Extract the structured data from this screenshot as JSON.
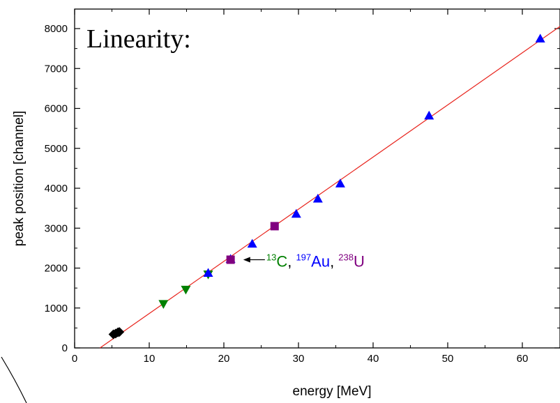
{
  "chart_data": {
    "type": "scatter",
    "title": "Linearity:",
    "xlabel": "energy [MeV]",
    "ylabel": "peak position [channel]",
    "xlim": [
      0,
      65
    ],
    "ylim": [
      0,
      8400
    ],
    "xticks": [
      0,
      10,
      20,
      30,
      40,
      50,
      60
    ],
    "yticks": [
      0,
      1000,
      2000,
      3000,
      4000,
      5000,
      6000,
      7000,
      8000
    ],
    "grid": false,
    "fit_line": {
      "color": "#e8231c",
      "points": [
        [
          3.4,
          0
        ],
        [
          65.4,
          8100
        ]
      ]
    },
    "series": [
      {
        "marker": "diamond",
        "color": "#000000",
        "points": [
          [
            5.2,
            340
          ],
          [
            5.5,
            360
          ],
          [
            5.8,
            390
          ],
          [
            6.0,
            400
          ]
        ]
      },
      {
        "marker": "triangle-down",
        "color": "#008000",
        "points": [
          [
            11.9,
            1100
          ],
          [
            14.9,
            1460
          ],
          [
            17.9,
            1840
          ]
        ]
      },
      {
        "marker": "triangle-up",
        "color": "#0000ff",
        "points": [
          [
            17.9,
            1880
          ],
          [
            20.9,
            2230
          ],
          [
            23.8,
            2610
          ],
          [
            29.7,
            3360
          ],
          [
            32.6,
            3740
          ],
          [
            35.6,
            4120
          ],
          [
            47.5,
            5820
          ],
          [
            62.4,
            7750
          ]
        ]
      },
      {
        "marker": "square",
        "color": "#800080",
        "points": [
          [
            20.9,
            2210
          ],
          [
            26.8,
            3050
          ]
        ]
      }
    ],
    "annotation": {
      "arrow_to": [
        22.6,
        2210
      ],
      "arrow_from": [
        25.5,
        2210
      ],
      "items": [
        {
          "sup": "13",
          "text": "C",
          "color": "#008000",
          "sep": ", "
        },
        {
          "sup": "197",
          "text": "Au",
          "color": "#0000ff",
          "sep": ", "
        },
        {
          "sup": "238",
          "text": "U",
          "color": "#800080",
          "sep": ""
        }
      ]
    }
  }
}
